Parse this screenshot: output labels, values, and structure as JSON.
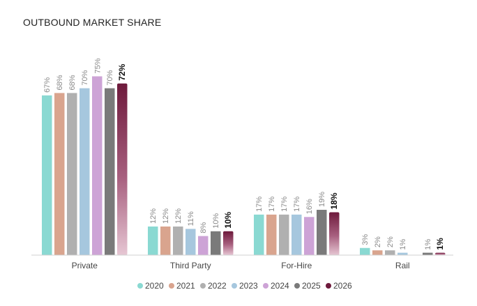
{
  "title": "OUTBOUND MARKET SHARE",
  "chart_data": {
    "type": "bar",
    "title": "OUTBOUND MARKET SHARE",
    "categories": [
      "Private",
      "Third Party",
      "For-Hire",
      "Rail"
    ],
    "series": [
      {
        "name": "2020",
        "values": [
          67,
          12,
          17,
          3
        ],
        "labels": [
          "67%",
          "12%",
          "17%",
          "3%"
        ],
        "color": "#8ad9d2"
      },
      {
        "name": "2021",
        "values": [
          68,
          12,
          17,
          2
        ],
        "labels": [
          "68%",
          "12%",
          "17%",
          "2%"
        ],
        "color": "#d9a48e"
      },
      {
        "name": "2022",
        "values": [
          68,
          12,
          17,
          2
        ],
        "labels": [
          "68%",
          "12%",
          "17%",
          "2%"
        ],
        "color": "#b0b0b0"
      },
      {
        "name": "2023",
        "values": [
          70,
          11,
          17,
          1
        ],
        "labels": [
          "70%",
          "11%",
          "17%",
          "1%"
        ],
        "color": "#a6c7de"
      },
      {
        "name": "2024",
        "values": [
          75,
          8,
          16,
          0
        ],
        "labels": [
          "75%",
          "8%",
          "16%",
          ""
        ],
        "color": "#cda3d6"
      },
      {
        "name": "2025",
        "values": [
          70,
          10,
          19,
          1
        ],
        "labels": [
          "70%",
          "10%",
          "19%",
          "1%"
        ],
        "color": "#7a7a7a"
      },
      {
        "name": "2026",
        "values": [
          72,
          10,
          18,
          1
        ],
        "labels": [
          "72%",
          "10%",
          "18%",
          "1%"
        ],
        "color": "#6e1a3c",
        "emphasis": true
      }
    ],
    "ylim": [
      0,
      100
    ],
    "grid": false,
    "legend": "bottom"
  }
}
